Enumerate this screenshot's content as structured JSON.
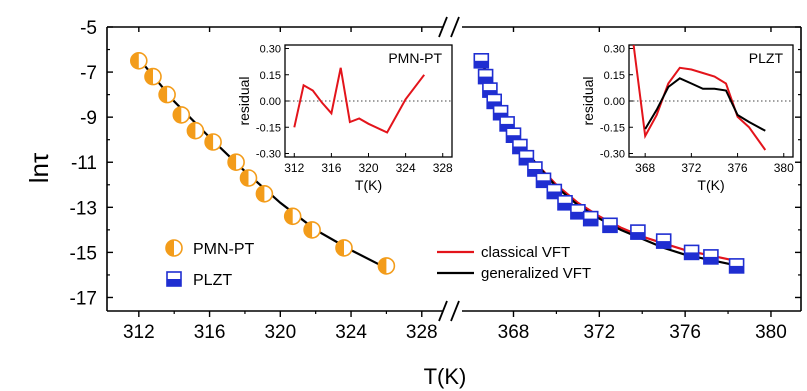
{
  "chart_data": {
    "type": "scatter",
    "ylabel": "lnτ",
    "xlabel": "T(K)",
    "ylim": [
      -17.6,
      -5
    ],
    "yticks": [
      -5,
      -7,
      -9,
      -11,
      -13,
      -15,
      -17
    ],
    "panels": [
      {
        "name": "left",
        "xlim": [
          310.2,
          329.2
        ],
        "xticks": [
          312,
          316,
          320,
          324,
          328
        ],
        "series": [
          {
            "name": "PMN-PT",
            "marker": "half-filled-circle",
            "color": "#f39c1a",
            "x": [
              312.0,
              312.8,
              313.6,
              314.4,
              315.2,
              316.2,
              317.5,
              318.2,
              319.1,
              320.7,
              321.8,
              323.6,
              326.0
            ],
            "y": [
              -6.5,
              -7.2,
              -8.0,
              -8.9,
              -9.6,
              -10.1,
              -11.0,
              -11.7,
              -12.4,
              -13.4,
              -14.0,
              -14.8,
              -15.6
            ]
          }
        ],
        "fits": [
          {
            "name": "generalized VFT",
            "color": "#000000",
            "x": [
              312.0,
              314.0,
              316.0,
              318.0,
              320.0,
              322.0,
              324.0,
              326.0
            ],
            "y": [
              -6.4,
              -8.3,
              -9.9,
              -11.4,
              -12.8,
              -14.0,
              -14.9,
              -15.7
            ]
          }
        ]
      },
      {
        "name": "right",
        "xlim": [
          365.6,
          381.4
        ],
        "xticks": [
          368,
          372,
          376,
          380
        ],
        "series": [
          {
            "name": "PLZT",
            "marker": "half-filled-square",
            "color": "#1f2ed1",
            "x": [
              366.5,
              366.7,
              366.9,
              367.1,
              367.4,
              367.7,
              368.0,
              368.3,
              368.6,
              369.0,
              369.4,
              369.9,
              370.4,
              371.0,
              371.6,
              372.5,
              373.8,
              375.0,
              376.3,
              377.2,
              378.4
            ],
            "y": [
              -6.5,
              -7.2,
              -7.8,
              -8.3,
              -8.8,
              -9.3,
              -9.8,
              -10.3,
              -10.8,
              -11.3,
              -11.8,
              -12.3,
              -12.8,
              -13.2,
              -13.5,
              -13.8,
              -14.1,
              -14.5,
              -15.0,
              -15.2,
              -15.6
            ]
          }
        ],
        "fits": [
          {
            "name": "classical VFT",
            "color": "#e3141b",
            "x": [
              366.5,
              367.0,
              368.0,
              369.0,
              370.0,
              371.0,
              372.0,
              373.0,
              374.0,
              375.0,
              376.0,
              377.0,
              378.5
            ],
            "y": [
              -6.5,
              -7.9,
              -9.8,
              -11.0,
              -12.0,
              -12.8,
              -13.4,
              -13.9,
              -14.3,
              -14.6,
              -14.9,
              -15.1,
              -15.4
            ]
          },
          {
            "name": "generalized VFT",
            "color": "#000000",
            "x": [
              366.5,
              367.0,
              368.0,
              369.0,
              370.0,
              371.0,
              372.0,
              373.0,
              374.0,
              375.0,
              376.0,
              377.0,
              378.5
            ],
            "y": [
              -6.4,
              -7.8,
              -9.8,
              -11.0,
              -12.1,
              -12.9,
              -13.5,
              -14.0,
              -14.4,
              -14.8,
              -15.1,
              -15.3,
              -15.6
            ]
          }
        ]
      }
    ],
    "legend_left": [
      {
        "name": "PMN-PT",
        "marker": "half-filled-circle"
      },
      {
        "name": "PLZT",
        "marker": "half-filled-square"
      }
    ],
    "legend_right": [
      {
        "name": "classical VFT",
        "color": "#e3141b"
      },
      {
        "name": "generalized VFT",
        "color": "#000000"
      }
    ],
    "insets": [
      {
        "label": "PMN-PT",
        "ylabel": "residual",
        "xlabel": "T(K)",
        "xlim": [
          311,
          329
        ],
        "ylim": [
          -0.32,
          0.32
        ],
        "xticks": [
          312,
          316,
          320,
          324,
          328
        ],
        "yticks": [
          "0.30",
          "0.15",
          "0.00",
          "-0.15",
          "-0.30"
        ],
        "series": [
          {
            "color": "#e3141b",
            "x": [
              312.0,
              313.0,
              314.0,
              315.0,
              316.0,
              317.0,
              318.0,
              319.0,
              320.0,
              322.0,
              324.0,
              326.0
            ],
            "y": [
              -0.15,
              0.09,
              0.06,
              -0.01,
              -0.07,
              0.19,
              -0.12,
              -0.1,
              -0.13,
              -0.18,
              0.01,
              0.15
            ]
          }
        ]
      },
      {
        "label": "PLZT",
        "ylabel": "residual",
        "xlabel": "T(K)",
        "xlim": [
          366.6,
          380.8
        ],
        "ylim": [
          -0.32,
          0.32
        ],
        "xticks": [
          368,
          372,
          376,
          380
        ],
        "yticks": [
          "0.30",
          "0.15",
          "0.00",
          "-0.15",
          "-0.30"
        ],
        "series": [
          {
            "name": "classical VFT",
            "color": "#e3141b",
            "x": [
              367.0,
              368.0,
              369.0,
              370.0,
              371.0,
              372.0,
              373.0,
              374.0,
              375.0,
              376.0,
              377.0,
              378.4
            ],
            "y": [
              0.32,
              -0.2,
              -0.08,
              0.1,
              0.19,
              0.18,
              0.16,
              0.14,
              0.1,
              -0.09,
              -0.15,
              -0.28
            ]
          },
          {
            "name": "generalized VFT",
            "color": "#000000",
            "x": [
              368.0,
              369.0,
              370.0,
              371.0,
              372.0,
              373.0,
              374.0,
              375.0,
              376.0,
              377.0,
              378.4
            ],
            "y": [
              -0.16,
              -0.05,
              0.08,
              0.13,
              0.1,
              0.07,
              0.07,
              0.06,
              -0.08,
              -0.12,
              -0.17
            ]
          }
        ]
      }
    ]
  }
}
